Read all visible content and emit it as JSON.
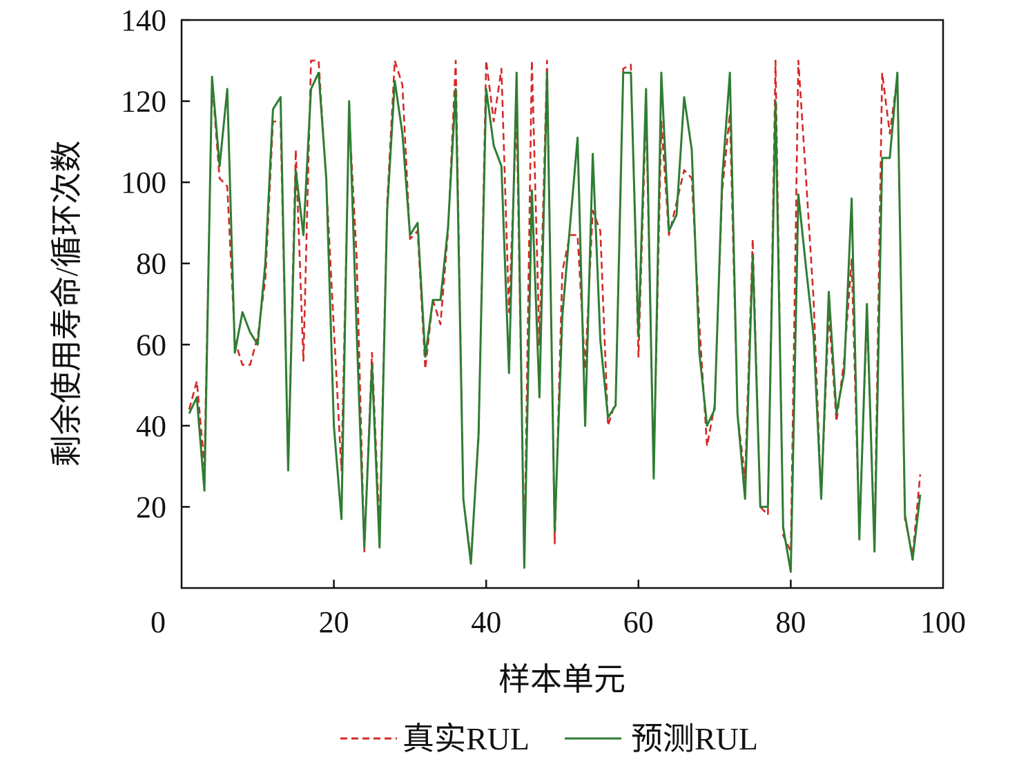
{
  "colors": {
    "true_rul": "#d62728",
    "pred_rul": "#2e7d32",
    "axis": "#111111"
  },
  "chart_data": {
    "type": "line",
    "title": "",
    "xlabel": "样本单元",
    "ylabel": "剩余使用寿命/循环次数",
    "xlim": [
      0,
      100
    ],
    "ylim": [
      0,
      140
    ],
    "xticks": [
      0,
      20,
      40,
      60,
      80,
      100
    ],
    "yticks": [
      20,
      40,
      60,
      80,
      100,
      120,
      140
    ],
    "grid": false,
    "legend_position": "bottom",
    "series": [
      {
        "name": "真实RUL",
        "style": "dashed",
        "color": "#d62728",
        "x": [
          0,
          1,
          2,
          3,
          4,
          5,
          6,
          7,
          8,
          9,
          10,
          11,
          12,
          13,
          14,
          15,
          16,
          17,
          18,
          19,
          20,
          21,
          22,
          23,
          24,
          25,
          26,
          27,
          28,
          29,
          30,
          31,
          32,
          33,
          34,
          35,
          36,
          37,
          38,
          39,
          40,
          41,
          42,
          43,
          44,
          45,
          46,
          47,
          48,
          49,
          50,
          51,
          52,
          53,
          54,
          55,
          56,
          57,
          58,
          59,
          60,
          61,
          62,
          63,
          64,
          65,
          66,
          67,
          68,
          69,
          70,
          71,
          72,
          73,
          74,
          75,
          76,
          77,
          78,
          79,
          80,
          81,
          82,
          83,
          84,
          85,
          86,
          87,
          88,
          89,
          90,
          91,
          92,
          93,
          94,
          95,
          96
        ],
        "values": [
          44,
          51,
          30,
          125,
          101,
          99,
          61,
          55,
          55,
          62,
          76,
          115,
          115,
          30,
          108,
          56,
          130,
          130,
          100,
          64,
          29,
          117,
          81,
          9,
          58,
          14,
          95,
          130,
          124,
          86,
          88,
          54,
          71,
          65,
          88,
          130,
          22,
          7,
          37,
          130,
          115,
          128,
          68,
          117,
          7,
          130,
          60,
          130,
          11,
          78,
          87,
          87,
          54,
          93,
          88,
          40,
          46,
          128,
          129,
          57,
          118,
          28,
          115,
          87,
          95,
          103,
          101,
          65,
          35,
          45,
          98,
          117,
          43,
          27,
          86,
          20,
          18,
          130,
          13,
          9,
          130,
          101,
          71,
          22,
          68,
          41,
          56,
          81,
          13,
          67,
          11,
          127,
          112,
          126,
          17,
          8,
          28
        ]
      },
      {
        "name": "预测RUL",
        "style": "solid",
        "color": "#2e7d32",
        "x": [
          0,
          1,
          2,
          3,
          4,
          5,
          6,
          7,
          8,
          9,
          10,
          11,
          12,
          13,
          14,
          15,
          16,
          17,
          18,
          19,
          20,
          21,
          22,
          23,
          24,
          25,
          26,
          27,
          28,
          29,
          30,
          31,
          32,
          33,
          34,
          35,
          36,
          37,
          38,
          39,
          40,
          41,
          42,
          43,
          44,
          45,
          46,
          47,
          48,
          49,
          50,
          51,
          52,
          53,
          54,
          55,
          56,
          57,
          58,
          59,
          60,
          61,
          62,
          63,
          64,
          65,
          66,
          67,
          68,
          69,
          70,
          71,
          72,
          73,
          74,
          75,
          76,
          77,
          78,
          79,
          80,
          81,
          82,
          83,
          84,
          85,
          86,
          87,
          88,
          89,
          90,
          91,
          92,
          93,
          94,
          95,
          96
        ],
        "values": [
          43,
          47,
          24,
          126,
          104,
          123,
          58,
          68,
          63,
          60,
          80,
          118,
          121,
          29,
          103,
          87,
          123,
          127,
          101,
          40,
          17,
          120,
          63,
          10,
          55,
          10,
          93,
          125,
          112,
          87,
          90,
          57,
          71,
          71,
          89,
          123,
          22,
          6,
          38,
          123,
          109,
          104,
          53,
          127,
          5,
          98,
          47,
          127,
          14,
          67,
          89,
          111,
          40,
          107,
          61,
          42,
          45,
          127,
          127,
          62,
          123,
          27,
          127,
          88,
          92,
          121,
          108,
          58,
          40,
          44,
          101,
          127,
          43,
          22,
          82,
          20,
          20,
          120,
          15,
          4,
          97,
          79,
          62,
          22,
          73,
          43,
          53,
          96,
          12,
          70,
          9,
          106,
          106,
          127,
          18,
          7,
          23
        ]
      }
    ]
  }
}
